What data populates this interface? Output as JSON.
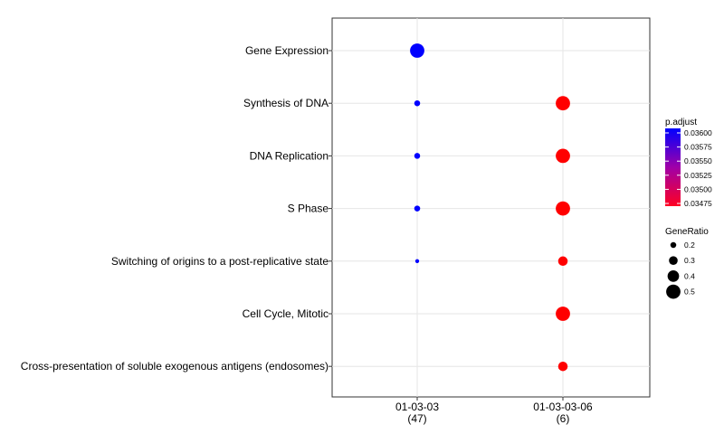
{
  "chart_data": {
    "type": "scatter",
    "categories_y": [
      "Gene Expression",
      "Synthesis of DNA",
      "DNA Replication",
      "S Phase",
      "Switching of origins to a post-replicative state",
      "Cell Cycle, Mitotic",
      "Cross-presentation of soluble exogenous antigens (endosomes)"
    ],
    "categories_x": [
      {
        "label": "01-03-03",
        "count": "(47)"
      },
      {
        "label": "01-03-03-06",
        "count": "(6)"
      }
    ],
    "points": [
      {
        "x": "01-03-03",
        "y": "Gene Expression",
        "gene_ratio": 0.5,
        "p_adjust": 0.036
      },
      {
        "x": "01-03-03",
        "y": "Synthesis of DNA",
        "gene_ratio": 0.2,
        "p_adjust": 0.036
      },
      {
        "x": "01-03-03",
        "y": "DNA Replication",
        "gene_ratio": 0.2,
        "p_adjust": 0.036
      },
      {
        "x": "01-03-03",
        "y": "S Phase",
        "gene_ratio": 0.2,
        "p_adjust": 0.036
      },
      {
        "x": "01-03-03",
        "y": "Switching of origins to a post-replicative state",
        "gene_ratio": 0.13,
        "p_adjust": 0.036
      },
      {
        "x": "01-03-03-06",
        "y": "Synthesis of DNA",
        "gene_ratio": 0.5,
        "p_adjust": 0.03475
      },
      {
        "x": "01-03-03-06",
        "y": "DNA Replication",
        "gene_ratio": 0.5,
        "p_adjust": 0.03475
      },
      {
        "x": "01-03-03-06",
        "y": "S Phase",
        "gene_ratio": 0.5,
        "p_adjust": 0.03475
      },
      {
        "x": "01-03-03-06",
        "y": "Switching of origins to a post-replicative state",
        "gene_ratio": 0.33,
        "p_adjust": 0.03475
      },
      {
        "x": "01-03-03-06",
        "y": "Cell Cycle, Mitotic",
        "gene_ratio": 0.5,
        "p_adjust": 0.03475
      },
      {
        "x": "01-03-03-06",
        "y": "Cross-presentation of soluble exogenous antigens (endosomes)",
        "gene_ratio": 0.33,
        "p_adjust": 0.03475
      }
    ],
    "color_legend": {
      "title": "p.adjust",
      "ticks": [
        "0.03600",
        "0.03575",
        "0.03550",
        "0.03525",
        "0.03500",
        "0.03475"
      ],
      "range": [
        0.03475,
        0.036
      ],
      "low_color": "#ff0000",
      "high_color": "#0000ff"
    },
    "size_legend": {
      "title": "GeneRatio",
      "entries": [
        {
          "label": "0.2",
          "value": 0.2
        },
        {
          "label": "0.3",
          "value": 0.3
        },
        {
          "label": "0.4",
          "value": 0.4
        },
        {
          "label": "0.5",
          "value": 0.5
        }
      ]
    },
    "grid": true,
    "legend_placement": "right"
  }
}
